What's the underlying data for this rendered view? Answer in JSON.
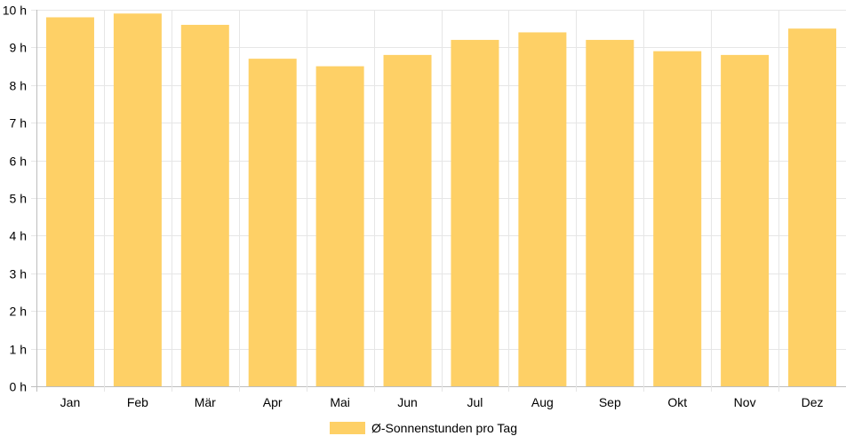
{
  "chart_data": {
    "type": "bar",
    "categories": [
      "Jan",
      "Feb",
      "Mär",
      "Apr",
      "Mai",
      "Jun",
      "Jul",
      "Aug",
      "Sep",
      "Okt",
      "Nov",
      "Dez"
    ],
    "series": [
      {
        "name": "Ø-Sonnenstunden pro Tag",
        "values": [
          9.8,
          9.9,
          9.6,
          8.7,
          8.5,
          8.8,
          9.2,
          9.4,
          9.2,
          8.9,
          8.8,
          9.5
        ],
        "color": "#fed066"
      }
    ],
    "ylim": [
      0,
      10
    ],
    "yticks": [
      0,
      1,
      2,
      3,
      4,
      5,
      6,
      7,
      8,
      9,
      10
    ],
    "y_unit": "h",
    "grid": true,
    "legend_position": "bottom-center",
    "colors": {
      "grid": "#e6e6e6",
      "axis": "#bdbdbd",
      "text": "#000000"
    }
  }
}
